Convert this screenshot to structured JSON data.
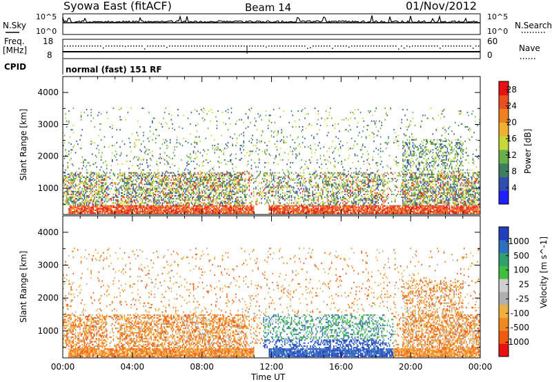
{
  "header": {
    "title": "Syowa East (fitACF)",
    "beam": "Beam 14",
    "date": "01/Nov/2012"
  },
  "top_panels": {
    "nsky_label": "N.Sky",
    "nsearch_label": "N.Search",
    "nsky_ticks": [
      "10^5",
      "10^0"
    ],
    "nsky_right_ticks": [
      "10^5",
      "10^0"
    ],
    "freq_label_1": "Freq.",
    "freq_label_2": "[MHz]",
    "freq_ticks": [
      "18",
      "8"
    ],
    "nave_ticks": [
      "60",
      "0"
    ],
    "nave_label": "Nave",
    "cpid_label": "CPID",
    "cpid_text": "normal (fast) 151 RF"
  },
  "colors": {
    "power_scale": [
      "#1f1fff",
      "#2e4fb0",
      "#3d7f5f",
      "#6ab04a",
      "#c8d837",
      "#f0b030",
      "#f08020",
      "#e85020",
      "#e81010"
    ],
    "velocity_scale": [
      "#e81010",
      "#f05a10",
      "#f08a20",
      "#f0b040",
      "#b0b0b0",
      "#d0d0d0",
      "#3fbf3f",
      "#2f9f6f",
      "#2f6fbf",
      "#1f3fbf"
    ]
  },
  "chart_data": [
    {
      "type": "heatmap",
      "title": "",
      "ylabel": "Slant Range [km]",
      "xlabel": "",
      "ylim": [
        180,
        4500
      ],
      "y_ticks": [
        1000,
        2000,
        3000,
        4000
      ],
      "colorbar_label": "Power [dB]",
      "colorbar_ticks": [
        "28",
        "24",
        "20",
        "16",
        "12",
        "8",
        "4"
      ],
      "colorbar_range": [
        0,
        30
      ]
    },
    {
      "type": "heatmap",
      "title": "",
      "ylabel": "Slant Range [km]",
      "xlabel": "Time UT",
      "ylim": [
        180,
        4500
      ],
      "y_ticks": [
        1000,
        2000,
        3000,
        4000
      ],
      "x_ticks": [
        "00:00",
        "04:00",
        "08:00",
        "12:00",
        "16:00",
        "20:00",
        "00:00"
      ],
      "colorbar_label": "Velocity [m s^-1]",
      "colorbar_ticks": [
        "1000",
        "500",
        "100",
        "25",
        "-25",
        "-100",
        "-500",
        "-1000"
      ]
    }
  ]
}
